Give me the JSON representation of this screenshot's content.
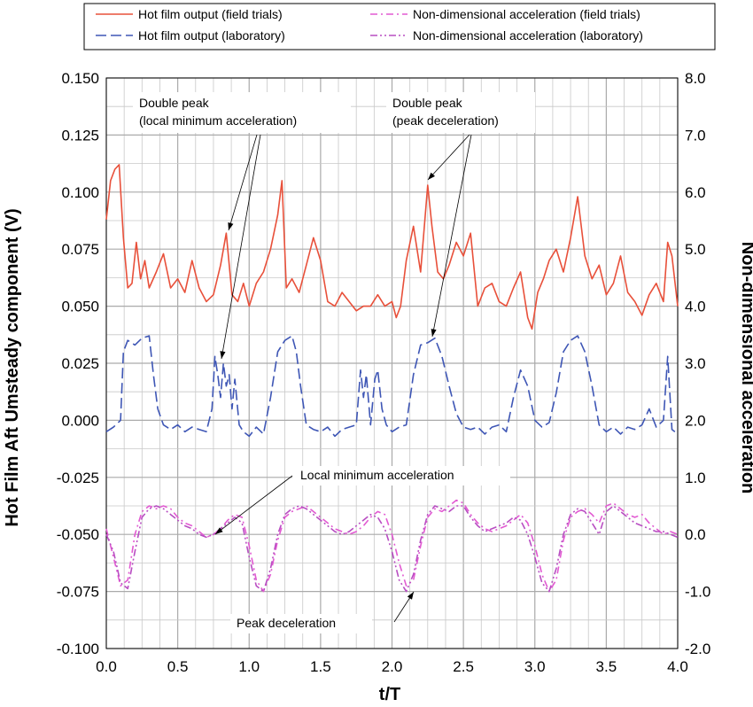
{
  "chart_data": {
    "type": "line",
    "xlabel": "t/T",
    "ylabel_left": "Hot Film Aft Umsteady component  (V)",
    "ylabel_right": "Non-dimensional acceleration",
    "xlim": [
      0,
      4
    ],
    "ylim_left": [
      -0.1,
      0.15
    ],
    "ylim_right": [
      -2,
      8
    ],
    "x_ticks": [
      "0.0",
      "0.5",
      "1.0",
      "1.5",
      "2.0",
      "2.5",
      "3.0",
      "3.5",
      "4.0"
    ],
    "y_left_ticks": [
      "0.150",
      "0.125",
      "0.100",
      "0.075",
      "0.050",
      "0.025",
      "0.000",
      "-0.025",
      "-0.050",
      "-0.075",
      "-0.100"
    ],
    "y_right_ticks": [
      "8.0",
      "7.0",
      "6.0",
      "5.0",
      "4.0",
      "3.0",
      "2.0",
      "1.0",
      "0.0",
      "-1.0",
      "-2.0"
    ],
    "grid": true,
    "legend_position": "top",
    "series": [
      {
        "name": "Hot film output (field trials)",
        "axis": "left",
        "color": "#e8503a",
        "dash": "solid",
        "x": [
          0.0,
          0.03,
          0.06,
          0.09,
          0.12,
          0.15,
          0.18,
          0.21,
          0.24,
          0.27,
          0.3,
          0.35,
          0.4,
          0.45,
          0.5,
          0.55,
          0.6,
          0.65,
          0.7,
          0.75,
          0.8,
          0.84,
          0.88,
          0.92,
          0.96,
          1.0,
          1.05,
          1.1,
          1.15,
          1.2,
          1.23,
          1.26,
          1.3,
          1.35,
          1.4,
          1.45,
          1.5,
          1.55,
          1.6,
          1.65,
          1.7,
          1.75,
          1.8,
          1.85,
          1.9,
          1.95,
          2.0,
          2.03,
          2.06,
          2.1,
          2.15,
          2.2,
          2.25,
          2.28,
          2.32,
          2.36,
          2.4,
          2.45,
          2.5,
          2.55,
          2.6,
          2.65,
          2.7,
          2.75,
          2.8,
          2.85,
          2.9,
          2.95,
          2.98,
          3.02,
          3.06,
          3.1,
          3.15,
          3.2,
          3.25,
          3.3,
          3.35,
          3.4,
          3.45,
          3.5,
          3.55,
          3.6,
          3.65,
          3.7,
          3.75,
          3.8,
          3.85,
          3.9,
          3.93,
          3.96,
          4.0
        ],
        "values": [
          0.088,
          0.105,
          0.11,
          0.112,
          0.08,
          0.058,
          0.06,
          0.078,
          0.062,
          0.07,
          0.058,
          0.065,
          0.073,
          0.058,
          0.062,
          0.056,
          0.07,
          0.058,
          0.052,
          0.055,
          0.068,
          0.082,
          0.055,
          0.052,
          0.06,
          0.05,
          0.06,
          0.065,
          0.075,
          0.09,
          0.105,
          0.058,
          0.062,
          0.056,
          0.068,
          0.08,
          0.07,
          0.052,
          0.05,
          0.056,
          0.052,
          0.048,
          0.05,
          0.05,
          0.055,
          0.05,
          0.052,
          0.045,
          0.05,
          0.07,
          0.085,
          0.065,
          0.103,
          0.085,
          0.065,
          0.062,
          0.068,
          0.078,
          0.072,
          0.082,
          0.05,
          0.058,
          0.06,
          0.052,
          0.05,
          0.058,
          0.065,
          0.045,
          0.04,
          0.056,
          0.062,
          0.07,
          0.075,
          0.065,
          0.08,
          0.098,
          0.072,
          0.062,
          0.068,
          0.055,
          0.06,
          0.072,
          0.056,
          0.052,
          0.046,
          0.055,
          0.06,
          0.052,
          0.078,
          0.072,
          0.05
        ]
      },
      {
        "name": "Hot film output (laboratory)",
        "axis": "left",
        "color": "#3e56b5",
        "dash": "long-dash",
        "x": [
          0.0,
          0.05,
          0.1,
          0.12,
          0.15,
          0.2,
          0.25,
          0.3,
          0.33,
          0.36,
          0.4,
          0.45,
          0.5,
          0.55,
          0.6,
          0.65,
          0.7,
          0.74,
          0.76,
          0.78,
          0.8,
          0.82,
          0.84,
          0.86,
          0.88,
          0.9,
          0.93,
          0.96,
          1.0,
          1.05,
          1.1,
          1.15,
          1.2,
          1.25,
          1.3,
          1.33,
          1.36,
          1.4,
          1.45,
          1.5,
          1.55,
          1.6,
          1.65,
          1.7,
          1.75,
          1.78,
          1.8,
          1.82,
          1.85,
          1.88,
          1.9,
          1.93,
          1.96,
          2.0,
          2.05,
          2.1,
          2.15,
          2.2,
          2.25,
          2.3,
          2.35,
          2.4,
          2.45,
          2.5,
          2.55,
          2.6,
          2.65,
          2.7,
          2.75,
          2.8,
          2.85,
          2.9,
          2.95,
          3.0,
          3.05,
          3.1,
          3.15,
          3.2,
          3.25,
          3.3,
          3.35,
          3.4,
          3.45,
          3.5,
          3.55,
          3.6,
          3.65,
          3.7,
          3.75,
          3.8,
          3.85,
          3.9,
          3.93,
          3.96,
          4.0
        ],
        "values": [
          -0.005,
          -0.003,
          0.0,
          0.03,
          0.035,
          0.033,
          0.036,
          0.037,
          0.02,
          0.005,
          -0.002,
          -0.004,
          -0.002,
          -0.005,
          -0.003,
          -0.004,
          -0.005,
          0.005,
          0.028,
          0.02,
          0.01,
          0.025,
          0.015,
          0.02,
          0.005,
          0.018,
          -0.002,
          -0.005,
          -0.007,
          -0.003,
          -0.006,
          0.01,
          0.03,
          0.035,
          0.037,
          0.03,
          0.015,
          -0.002,
          -0.004,
          -0.005,
          -0.003,
          -0.007,
          -0.004,
          -0.003,
          -0.002,
          0.022,
          0.01,
          0.02,
          -0.002,
          0.018,
          0.022,
          0.005,
          -0.002,
          -0.005,
          -0.003,
          -0.002,
          0.02,
          0.033,
          0.034,
          0.036,
          0.028,
          0.015,
          0.003,
          -0.003,
          -0.004,
          -0.003,
          -0.006,
          -0.003,
          -0.002,
          -0.005,
          0.01,
          0.022,
          0.015,
          0.0,
          -0.003,
          -0.001,
          0.012,
          0.03,
          0.035,
          0.037,
          0.03,
          0.015,
          -0.002,
          -0.005,
          -0.003,
          -0.006,
          -0.003,
          -0.004,
          -0.002,
          0.005,
          -0.003,
          0.0,
          0.028,
          -0.004,
          -0.006
        ]
      },
      {
        "name": "Non-dimensional acceleration (field trials)",
        "axis": "right",
        "color": "#e25ad2",
        "dash": "dash-dot",
        "x": [
          0.0,
          0.05,
          0.1,
          0.15,
          0.2,
          0.25,
          0.3,
          0.35,
          0.4,
          0.45,
          0.5,
          0.55,
          0.6,
          0.65,
          0.7,
          0.75,
          0.8,
          0.85,
          0.9,
          0.95,
          1.0,
          1.05,
          1.1,
          1.15,
          1.2,
          1.25,
          1.3,
          1.35,
          1.4,
          1.45,
          1.5,
          1.55,
          1.6,
          1.65,
          1.7,
          1.75,
          1.8,
          1.85,
          1.9,
          1.95,
          2.0,
          2.05,
          2.1,
          2.15,
          2.2,
          2.25,
          2.3,
          2.35,
          2.4,
          2.45,
          2.5,
          2.55,
          2.6,
          2.65,
          2.7,
          2.75,
          2.8,
          2.85,
          2.9,
          2.95,
          3.0,
          3.05,
          3.1,
          3.15,
          3.2,
          3.25,
          3.3,
          3.35,
          3.4,
          3.45,
          3.5,
          3.55,
          3.6,
          3.65,
          3.7,
          3.75,
          3.8,
          3.85,
          3.9,
          3.95,
          4.0
        ],
        "values": [
          0.1,
          -0.4,
          -0.9,
          -0.8,
          0.0,
          0.4,
          0.5,
          0.45,
          0.5,
          0.45,
          0.3,
          0.2,
          0.15,
          0.05,
          -0.05,
          0.0,
          0.1,
          0.25,
          0.35,
          0.3,
          -0.2,
          -0.8,
          -1.0,
          -0.7,
          -0.1,
          0.3,
          0.4,
          0.45,
          0.5,
          0.4,
          0.3,
          0.2,
          0.1,
          0.05,
          0.0,
          0.05,
          0.15,
          0.3,
          0.4,
          0.35,
          0.0,
          -0.5,
          -0.9,
          -0.8,
          -0.2,
          0.3,
          0.45,
          0.4,
          0.5,
          0.6,
          0.55,
          0.35,
          0.2,
          0.1,
          0.05,
          0.1,
          0.15,
          0.25,
          0.35,
          0.2,
          -0.2,
          -0.7,
          -1.0,
          -0.8,
          -0.1,
          0.3,
          0.4,
          0.45,
          0.35,
          0.2,
          0.5,
          0.55,
          0.45,
          0.35,
          0.3,
          0.35,
          0.2,
          0.1,
          0.0,
          0.05,
          0.0
        ]
      },
      {
        "name": "Non-dimensional acceleration (laboratory)",
        "axis": "right",
        "color": "#b84ec2",
        "dash": "dash-dot-dot",
        "x": [
          0.0,
          0.05,
          0.1,
          0.15,
          0.2,
          0.25,
          0.3,
          0.35,
          0.4,
          0.45,
          0.5,
          0.55,
          0.6,
          0.65,
          0.7,
          0.75,
          0.8,
          0.85,
          0.9,
          0.95,
          1.0,
          1.05,
          1.1,
          1.15,
          1.2,
          1.25,
          1.3,
          1.35,
          1.4,
          1.45,
          1.5,
          1.55,
          1.6,
          1.65,
          1.7,
          1.75,
          1.8,
          1.85,
          1.9,
          1.95,
          2.0,
          2.05,
          2.1,
          2.15,
          2.2,
          2.25,
          2.3,
          2.35,
          2.4,
          2.45,
          2.5,
          2.55,
          2.6,
          2.65,
          2.7,
          2.75,
          2.8,
          2.85,
          2.9,
          2.95,
          3.0,
          3.05,
          3.1,
          3.15,
          3.2,
          3.25,
          3.3,
          3.35,
          3.4,
          3.45,
          3.5,
          3.55,
          3.6,
          3.65,
          3.7,
          3.75,
          3.8,
          3.85,
          3.9,
          3.95,
          4.0
        ],
        "values": [
          0.0,
          -0.3,
          -0.85,
          -0.95,
          -0.3,
          0.3,
          0.45,
          0.5,
          0.45,
          0.35,
          0.25,
          0.15,
          0.1,
          0.0,
          -0.05,
          0.0,
          0.1,
          0.2,
          0.3,
          0.2,
          -0.4,
          -0.9,
          -1.0,
          -0.6,
          0.0,
          0.35,
          0.45,
          0.5,
          0.45,
          0.35,
          0.25,
          0.15,
          0.05,
          0.0,
          0.05,
          0.15,
          0.25,
          0.35,
          0.3,
          0.1,
          -0.3,
          -0.8,
          -1.0,
          -0.7,
          -0.1,
          0.35,
          0.5,
          0.45,
          0.4,
          0.5,
          0.5,
          0.3,
          0.15,
          0.05,
          0.1,
          0.15,
          0.2,
          0.3,
          0.25,
          0.0,
          -0.4,
          -0.85,
          -1.0,
          -0.6,
          0.0,
          0.35,
          0.45,
          0.4,
          0.2,
          0.0,
          0.4,
          0.5,
          0.4,
          0.3,
          0.2,
          0.15,
          0.1,
          0.05,
          0.05,
          0.0,
          -0.05
        ]
      }
    ],
    "annotations": [
      {
        "lines": [
          "Double peak",
          "(local minimum acceleration)"
        ]
      },
      {
        "lines": [
          "Double peak",
          "(peak deceleration)"
        ]
      },
      {
        "lines": [
          "Local minimum acceleration"
        ]
      },
      {
        "lines": [
          "Peak deceleration"
        ]
      }
    ]
  }
}
